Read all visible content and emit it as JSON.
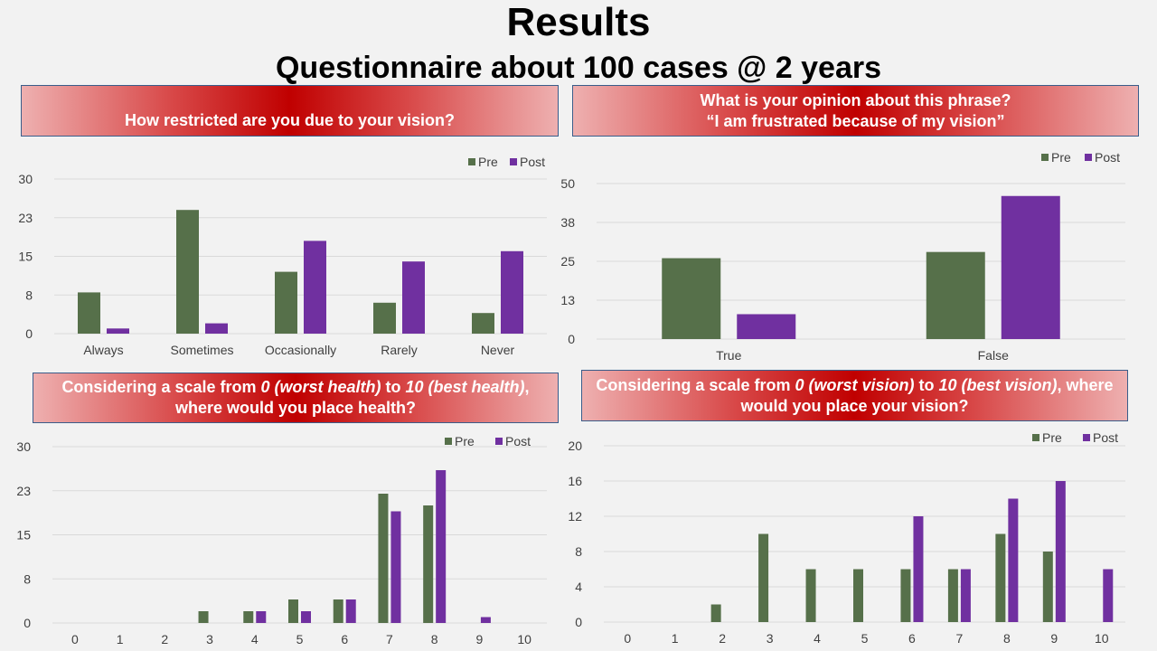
{
  "header": {
    "title": "Results",
    "subtitle": "Questionnaire about 100 cases @ 2 years"
  },
  "banners": {
    "q1": "How restricted are you due to your vision?",
    "q2": "What is your opinion about this phrase?\n“I am frustrated because of my vision”",
    "q3_a": "Considering a scale from ",
    "q3_b": "0 (worst health)",
    "q3_c": " to ",
    "q3_d": "10 (best health)",
    "q3_e": ",\nwhere would you place health?",
    "q4_a": "Considering a scale from ",
    "q4_b": "0 (worst vision)",
    "q4_c": " to ",
    "q4_d": "10 (best vision)",
    "q4_e": ", where\nwould you place your vision?"
  },
  "colors": {
    "pre": "#56704a",
    "post": "#7030a0",
    "grid": "#d9d9d9",
    "text": "#404040"
  },
  "chart_data": [
    {
      "type": "bar",
      "categories": [
        "Always",
        "Sometimes",
        "Occasionally",
        "Rarely",
        "Never"
      ],
      "yticks": [
        "0",
        "8",
        "15",
        "23",
        "30"
      ],
      "ylim": [
        0,
        30
      ],
      "legend_position": "top-right",
      "grid": true,
      "series": [
        {
          "name": "Pre",
          "values": [
            8,
            24,
            12,
            6,
            4
          ]
        },
        {
          "name": "Post",
          "values": [
            1,
            2,
            18,
            14,
            16
          ]
        }
      ]
    },
    {
      "type": "bar",
      "categories": [
        "True",
        "False"
      ],
      "yticks": [
        "0",
        "13",
        "25",
        "38",
        "50"
      ],
      "ylim": [
        0,
        50
      ],
      "legend_position": "top-right",
      "grid": true,
      "series": [
        {
          "name": "Pre",
          "values": [
            26,
            28
          ]
        },
        {
          "name": "Post",
          "values": [
            8,
            46
          ]
        }
      ]
    },
    {
      "type": "bar",
      "categories": [
        "0",
        "1",
        "2",
        "3",
        "4",
        "5",
        "6",
        "7",
        "8",
        "9",
        "10"
      ],
      "yticks": [
        "0",
        "8",
        "15",
        "23",
        "30"
      ],
      "ylim": [
        0,
        30
      ],
      "legend_position": "top-right",
      "grid": true,
      "series": [
        {
          "name": "Pre",
          "values": [
            0,
            0,
            0,
            2,
            2,
            4,
            4,
            22,
            20,
            0,
            0
          ]
        },
        {
          "name": "Post",
          "values": [
            0,
            0,
            0,
            0,
            2,
            2,
            4,
            19,
            26,
            1,
            0
          ]
        }
      ]
    },
    {
      "type": "bar",
      "categories": [
        "0",
        "1",
        "2",
        "3",
        "4",
        "5",
        "6",
        "7",
        "8",
        "9",
        "10"
      ],
      "yticks": [
        "0",
        "4",
        "8",
        "12",
        "16",
        "20"
      ],
      "ylim": [
        0,
        20
      ],
      "legend_position": "top-right",
      "grid": true,
      "series": [
        {
          "name": "Pre",
          "values": [
            0,
            0,
            2,
            10,
            6,
            6,
            6,
            6,
            10,
            8,
            0
          ]
        },
        {
          "name": "Post",
          "values": [
            0,
            0,
            0,
            0,
            0,
            0,
            12,
            6,
            14,
            16,
            6
          ]
        }
      ]
    }
  ]
}
